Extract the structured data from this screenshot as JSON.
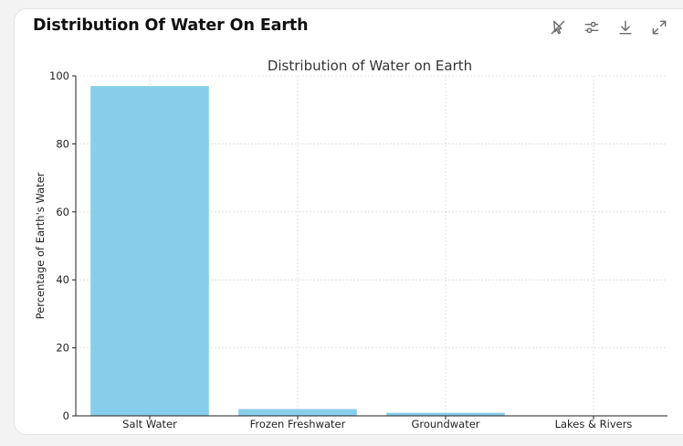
{
  "card": {
    "title": "Distribution Of Water On Earth"
  },
  "toolbar": {
    "icons": [
      "interactive-off-icon",
      "settings-sliders-icon",
      "download-icon",
      "expand-icon"
    ]
  },
  "colors": {
    "bar": "#87ceeb",
    "grid": "#d9d9d9",
    "axis": "#222222",
    "icon": "#6b6b6b"
  },
  "chart_data": {
    "type": "bar",
    "title": "Distribution of Water on Earth",
    "xlabel": "",
    "ylabel": "Percentage of Earth's Water",
    "categories": [
      "Salt Water",
      "Frozen Freshwater",
      "Groundwater",
      "Lakes & Rivers"
    ],
    "values": [
      97,
      2,
      0.9,
      0.01
    ],
    "ylim": [
      0,
      100
    ],
    "yticks": [
      0,
      20,
      40,
      60,
      80,
      100
    ],
    "grid": true
  }
}
